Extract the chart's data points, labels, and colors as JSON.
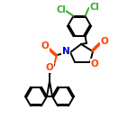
{
  "bg_color": "#ffffff",
  "line_color": "#000000",
  "cl_color": "#33aa33",
  "o_color": "#ff4400",
  "n_color": "#0000cc",
  "lw": 1.4,
  "afs": 7.5
}
